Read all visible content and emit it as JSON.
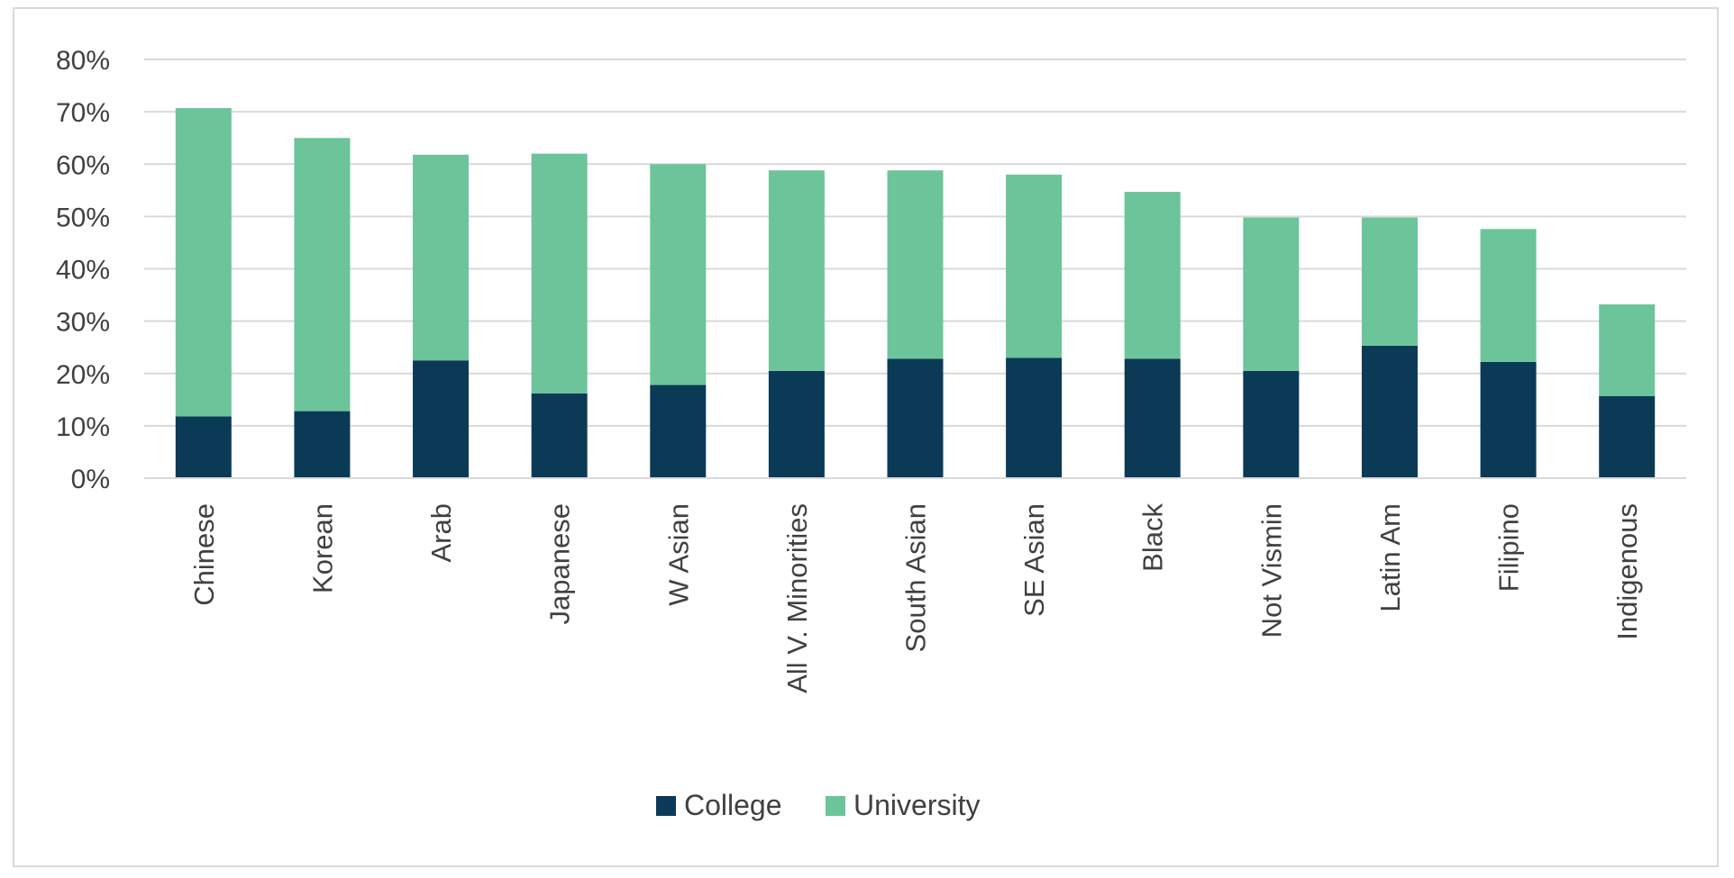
{
  "chart_data": {
    "type": "bar",
    "stacked": true,
    "title": "",
    "xlabel": "",
    "ylabel": "",
    "ylim": [
      0,
      80
    ],
    "y_ticks": [
      "0%",
      "10%",
      "20%",
      "30%",
      "40%",
      "50%",
      "60%",
      "70%",
      "80%"
    ],
    "grid": true,
    "legend": "bottom-center",
    "categories": [
      "Chinese",
      "Korean",
      "Arab",
      "Japanese",
      "W Asian",
      "All V. Minorities",
      "South Asian",
      "SE Asian",
      "Black",
      "Not Vismin",
      "Latin Am",
      "Filipino",
      "Indigenous"
    ],
    "series": [
      {
        "name": "College",
        "color": "#0b3a57",
        "values": [
          11.8,
          12.8,
          22.5,
          16.2,
          17.8,
          20.5,
          22.8,
          23.0,
          22.8,
          20.5,
          25.3,
          22.2,
          15.7
        ]
      },
      {
        "name": "University",
        "color": "#6cc49a",
        "values": [
          58.9,
          52.2,
          39.3,
          45.8,
          42.2,
          38.3,
          36.0,
          35.0,
          31.9,
          29.3,
          24.5,
          25.4,
          17.5
        ]
      }
    ]
  }
}
